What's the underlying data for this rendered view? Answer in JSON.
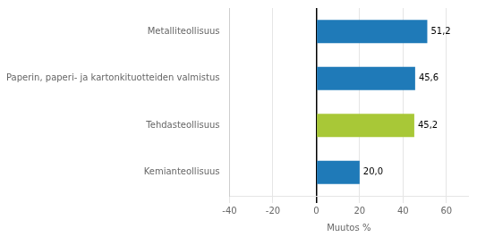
{
  "chart_data": {
    "type": "bar",
    "orientation": "horizontal",
    "categories": [
      "Kemianteollisuus",
      "Tehdasteollisuus",
      "Paperin, paperi- ja kartonkituotteiden valmistus",
      "Metalliteollisuus"
    ],
    "values": [
      20.0,
      45.2,
      45.6,
      51.2
    ],
    "colors": [
      "#1f7ab8",
      "#a8c837",
      "#1f7ab8",
      "#1f7ab8"
    ],
    "value_labels": [
      "20,0",
      "45,2",
      "45,6",
      "51,2"
    ],
    "data_labels": true,
    "xlabel": "Muutos %",
    "xlim": [
      -40,
      70
    ],
    "xticks": [
      -40,
      -20,
      0,
      20,
      40,
      60
    ],
    "grid": true
  }
}
